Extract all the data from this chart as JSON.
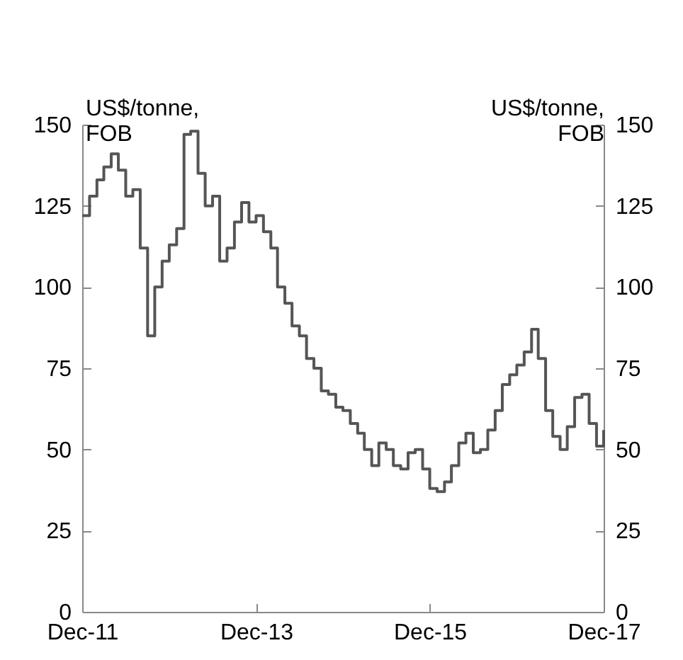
{
  "chart_data": {
    "type": "step",
    "ylabel": "US$/tonne, FOB",
    "y2label": "US$/tonne, FOB",
    "x": [
      "2011-12",
      "2012-01",
      "2012-02",
      "2012-03",
      "2012-04",
      "2012-05",
      "2012-06",
      "2012-07",
      "2012-08",
      "2012-09",
      "2012-10",
      "2012-11",
      "2012-12",
      "2013-01",
      "2013-02",
      "2013-03",
      "2013-04",
      "2013-05",
      "2013-06",
      "2013-07",
      "2013-08",
      "2013-09",
      "2013-10",
      "2013-11",
      "2013-12",
      "2014-01",
      "2014-02",
      "2014-03",
      "2014-04",
      "2014-05",
      "2014-06",
      "2014-07",
      "2014-08",
      "2014-09",
      "2014-10",
      "2014-11",
      "2014-12",
      "2015-01",
      "2015-02",
      "2015-03",
      "2015-04",
      "2015-05",
      "2015-06",
      "2015-07",
      "2015-08",
      "2015-09",
      "2015-10",
      "2015-11",
      "2015-12",
      "2016-01",
      "2016-02",
      "2016-03",
      "2016-04",
      "2016-05",
      "2016-06",
      "2016-07",
      "2016-08",
      "2016-09",
      "2016-10",
      "2016-11",
      "2016-12",
      "2017-01",
      "2017-02",
      "2017-03",
      "2017-04",
      "2017-05",
      "2017-06",
      "2017-07",
      "2017-08",
      "2017-09",
      "2017-10",
      "2017-11",
      "2017-12"
    ],
    "series": [
      {
        "color": "#555555",
        "values": [
          122,
          128,
          133,
          137,
          141,
          136,
          128,
          130,
          112,
          85,
          100,
          108,
          113,
          118,
          147,
          148,
          135,
          125,
          128,
          108,
          112,
          120,
          126,
          120,
          122,
          117,
          112,
          100,
          95,
          88,
          85,
          78,
          75,
          68,
          67,
          63,
          62,
          58,
          55,
          50,
          45,
          52,
          50,
          45,
          44,
          49,
          50,
          44,
          38,
          37,
          40,
          45,
          52,
          55,
          49,
          50,
          56,
          62,
          70,
          73,
          76,
          80,
          87,
          78,
          62,
          54,
          50,
          57,
          66,
          67,
          58,
          51,
          56
        ]
      }
    ],
    "xlim": [
      "2011-12",
      "2017-12"
    ],
    "xticks": [
      {
        "value": "2011-12",
        "label": "Dec-11"
      },
      {
        "value": "2013-12",
        "label": "Dec-13"
      },
      {
        "value": "2015-12",
        "label": "Dec-15"
      },
      {
        "value": "2017-12",
        "label": "Dec-17"
      }
    ],
    "ylim": [
      0,
      150
    ],
    "yticks": [
      0,
      25,
      50,
      75,
      100,
      125,
      150
    ],
    "y2lim": [
      0,
      150
    ],
    "y2ticks": [
      0,
      25,
      50,
      75,
      100,
      125,
      150
    ],
    "grid": false,
    "legend": false
  }
}
